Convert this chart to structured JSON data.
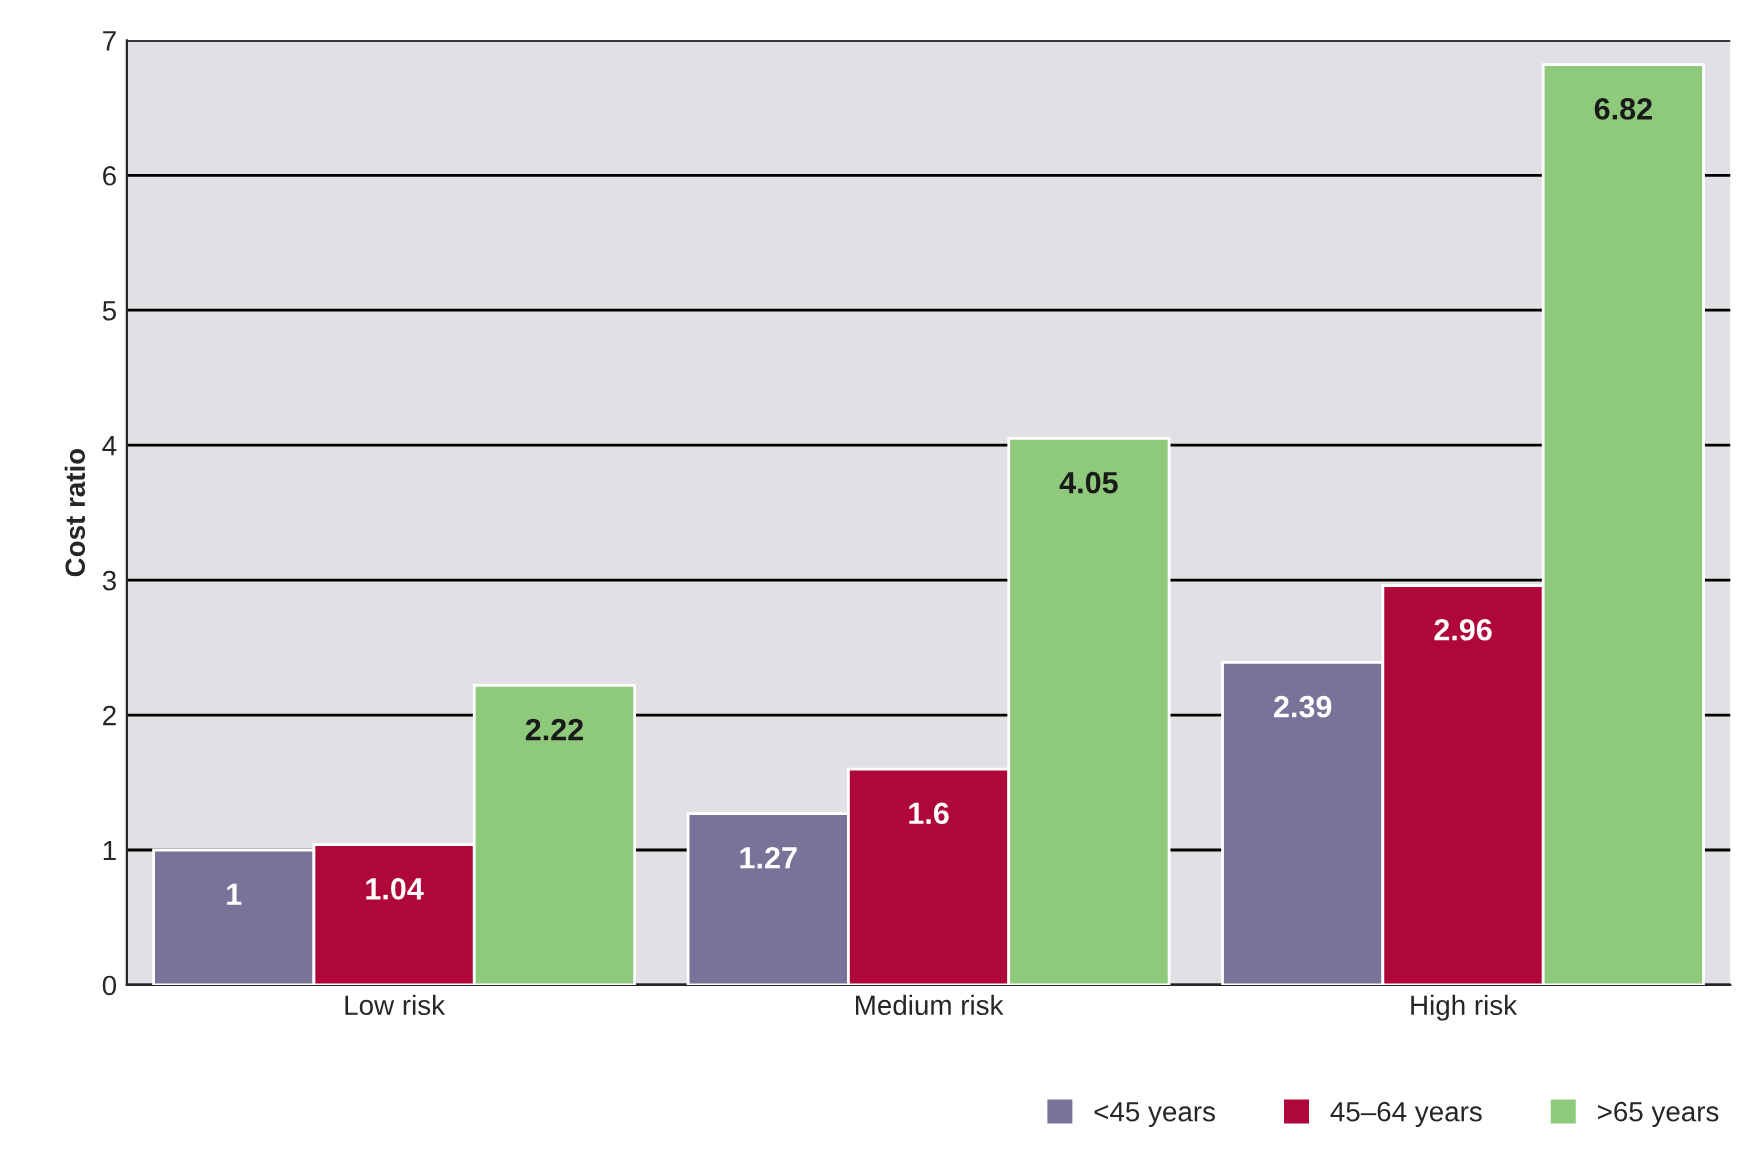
{
  "chart_data": {
    "type": "bar",
    "ylabel": "Cost ratio",
    "categories": [
      "Low risk",
      "Medium risk",
      "High risk"
    ],
    "series": [
      {
        "name": "<45 years",
        "color": "#7a7399",
        "values": [
          1,
          1.27,
          2.39
        ]
      },
      {
        "name": "45–64 years",
        "color": "#b0073b",
        "values": [
          1.04,
          1.6,
          2.96
        ]
      },
      {
        "name": ">65 years",
        "color": "#8fc97c",
        "values": [
          2.22,
          4.05,
          6.82
        ]
      }
    ],
    "ylim": [
      0,
      7
    ],
    "yticks": [
      0,
      1,
      2,
      3,
      4,
      5,
      6,
      7
    ],
    "grid": "y",
    "legend": "bottom right",
    "data_labels": true
  }
}
